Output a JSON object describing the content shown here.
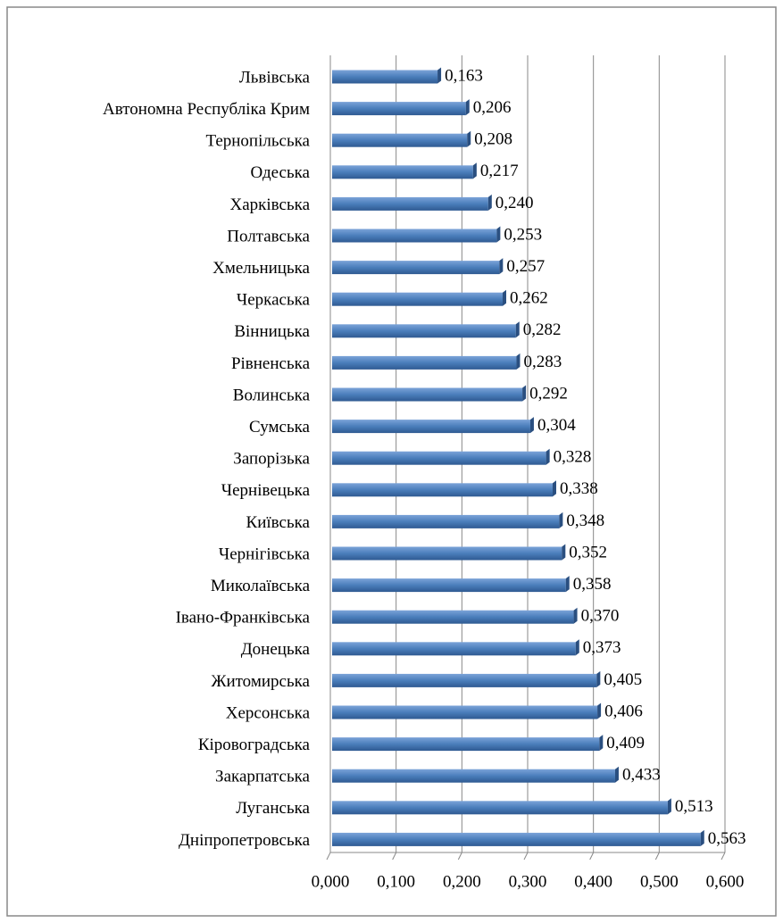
{
  "chart_data": {
    "type": "bar",
    "orientation": "horizontal",
    "categories": [
      "Львівська",
      "Автономна Республіка Крим",
      "Тернопільська",
      "Одеська",
      "Харківська",
      "Полтавська",
      "Хмельницька",
      "Черкаська",
      "Вінницька",
      "Рівненська",
      "Волинська",
      "Сумська",
      "Запорізька",
      "Чернівецька",
      "Київська",
      "Чернігівська",
      "Миколаївська",
      "Івано-Франківська",
      "Донецька",
      "Житомирська",
      "Херсонська",
      "Кіровоградська",
      "Закарпатська",
      "Луганська",
      "Дніпропетровська"
    ],
    "values": [
      0.163,
      0.206,
      0.208,
      0.217,
      0.24,
      0.253,
      0.257,
      0.262,
      0.282,
      0.283,
      0.292,
      0.304,
      0.328,
      0.338,
      0.348,
      0.352,
      0.358,
      0.37,
      0.373,
      0.405,
      0.406,
      0.409,
      0.433,
      0.513,
      0.563
    ],
    "value_labels": [
      "0,163",
      "0,206",
      "0,208",
      "0,217",
      "0,240",
      "0,253",
      "0,257",
      "0,262",
      "0,282",
      "0,283",
      "0,292",
      "0,304",
      "0,328",
      "0,338",
      "0,348",
      "0,352",
      "0,358",
      "0,370",
      "0,373",
      "0,405",
      "0,406",
      "0,409",
      "0,433",
      "0,513",
      "0,563"
    ],
    "color": "#4a7ebb",
    "xlim": [
      0,
      0.6
    ],
    "xticks": [
      {
        "value": 0,
        "label": "0,000"
      },
      {
        "value": 0.1,
        "label": "0,100"
      },
      {
        "value": 0.2,
        "label": "0,200"
      },
      {
        "value": 0.3,
        "label": "0,300"
      },
      {
        "value": 0.4,
        "label": "0,400"
      },
      {
        "value": 0.5,
        "label": "0,500"
      },
      {
        "value": 0.6,
        "label": "0,600"
      }
    ],
    "grid": true
  }
}
